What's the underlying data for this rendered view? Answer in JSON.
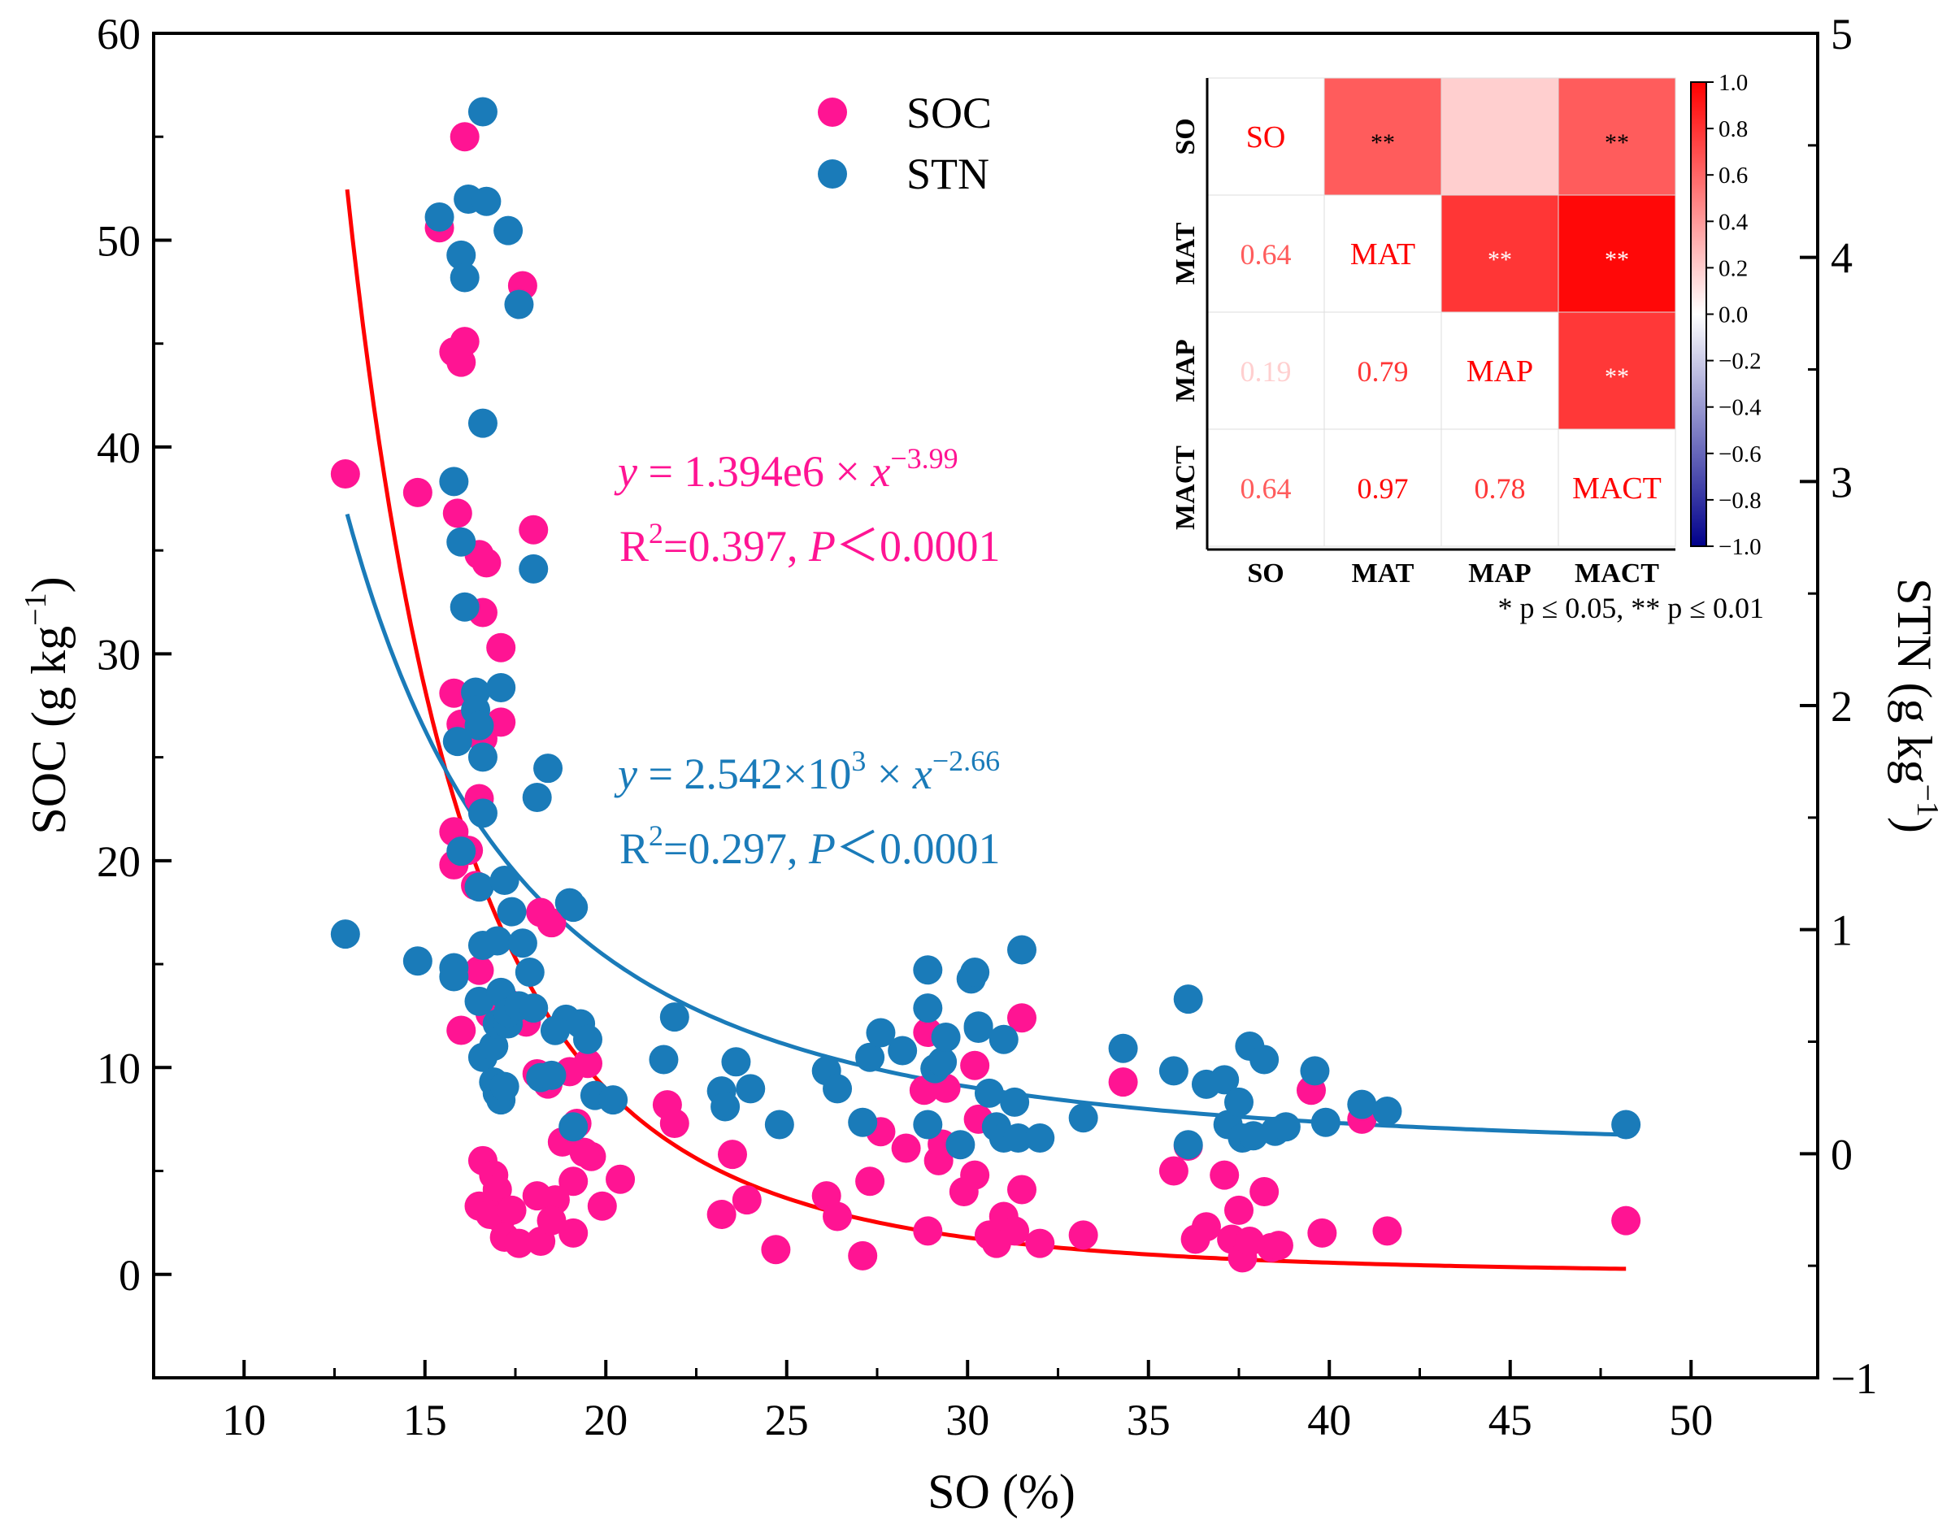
{
  "chart_data": {
    "type": "scatter",
    "xlabel": "SO (%)",
    "ylabel_left": "SOC (g kg",
    "ylabel_right": "STN (g kg",
    "unit_exponent": "−1",
    "xlim": [
      7.5,
      53.5
    ],
    "ylim_left": [
      -5,
      60
    ],
    "ylim_right": [
      -1,
      5
    ],
    "x_ticks": [
      10,
      15,
      20,
      25,
      30,
      35,
      40,
      45,
      50
    ],
    "y_left_ticks": [
      0,
      10,
      20,
      30,
      40,
      50,
      60
    ],
    "y_right_ticks": [
      -1,
      0,
      1,
      2,
      3,
      4,
      5
    ],
    "y_right_tick_labels": [
      "−1",
      "0",
      "1",
      "2",
      "3",
      "4",
      "5"
    ],
    "legend": [
      "SOC",
      "STN"
    ],
    "colors": {
      "SOC": "#ff1493",
      "STN": "#1a7bb9",
      "SOC_fit": "#ff0000",
      "STN_fit": "#1a7bb9",
      "axis": "#000000"
    },
    "series": [
      {
        "name": "SOC",
        "axis": "left",
        "points": [
          [
            12.8,
            38.7
          ],
          [
            14.8,
            37.8
          ],
          [
            15.4,
            50.6
          ],
          [
            15.8,
            44.6
          ],
          [
            16.0,
            44.1
          ],
          [
            16.1,
            45.1
          ],
          [
            16.1,
            55.0
          ],
          [
            15.9,
            36.8
          ],
          [
            16.5,
            34.8
          ],
          [
            16.7,
            34.4
          ],
          [
            16.6,
            32.0
          ],
          [
            17.1,
            30.3
          ],
          [
            17.7,
            47.8
          ],
          [
            18.0,
            36.0
          ],
          [
            15.8,
            28.1
          ],
          [
            16.0,
            26.6
          ],
          [
            16.3,
            26.3
          ],
          [
            16.6,
            25.9
          ],
          [
            17.1,
            26.7
          ],
          [
            16.5,
            23.0
          ],
          [
            15.8,
            21.4
          ],
          [
            16.2,
            20.5
          ],
          [
            15.8,
            19.8
          ],
          [
            16.4,
            18.8
          ],
          [
            18.2,
            17.5
          ],
          [
            18.5,
            17.0
          ],
          [
            16.5,
            14.7
          ],
          [
            16.8,
            12.6
          ],
          [
            16.0,
            11.8
          ],
          [
            17.3,
            13.1
          ],
          [
            17.8,
            12.2
          ],
          [
            18.1,
            9.7
          ],
          [
            18.4,
            9.2
          ],
          [
            18.8,
            6.4
          ],
          [
            19.2,
            7.3
          ],
          [
            19.5,
            10.2
          ],
          [
            19.0,
            9.8
          ],
          [
            19.6,
            5.7
          ],
          [
            19.1,
            4.5
          ],
          [
            19.4,
            5.9
          ],
          [
            19.9,
            3.3
          ],
          [
            20.4,
            4.6
          ],
          [
            19.1,
            2.0
          ],
          [
            18.6,
            3.6
          ],
          [
            18.1,
            3.8
          ],
          [
            16.6,
            5.5
          ],
          [
            16.9,
            4.8
          ],
          [
            17.0,
            4.1
          ],
          [
            16.5,
            3.3
          ],
          [
            16.8,
            2.9
          ],
          [
            17.1,
            2.7
          ],
          [
            17.2,
            1.8
          ],
          [
            17.6,
            1.5
          ],
          [
            17.4,
            3.1
          ],
          [
            18.2,
            1.6
          ],
          [
            18.5,
            2.6
          ],
          [
            21.7,
            8.2
          ],
          [
            21.9,
            7.3
          ],
          [
            23.2,
            2.9
          ],
          [
            23.5,
            5.8
          ],
          [
            23.9,
            3.6
          ],
          [
            24.7,
            1.2
          ],
          [
            26.1,
            3.8
          ],
          [
            26.4,
            2.8
          ],
          [
            27.1,
            0.9
          ],
          [
            27.3,
            4.5
          ],
          [
            27.6,
            6.9
          ],
          [
            28.3,
            6.1
          ],
          [
            28.9,
            11.7
          ],
          [
            28.8,
            8.9
          ],
          [
            29.2,
            5.5
          ],
          [
            29.3,
            6.3
          ],
          [
            29.4,
            9.0
          ],
          [
            28.9,
            2.1
          ],
          [
            29.9,
            4.0
          ],
          [
            30.2,
            4.8
          ],
          [
            30.2,
            10.1
          ],
          [
            30.3,
            7.5
          ],
          [
            30.6,
            1.9
          ],
          [
            30.8,
            1.5
          ],
          [
            31.0,
            2.8
          ],
          [
            31.3,
            2.1
          ],
          [
            31.5,
            4.1
          ],
          [
            31.5,
            12.4
          ],
          [
            32.0,
            1.5
          ],
          [
            33.2,
            1.9
          ],
          [
            34.3,
            9.3
          ],
          [
            35.7,
            5.0
          ],
          [
            36.1,
            6.2
          ],
          [
            36.3,
            1.7
          ],
          [
            36.6,
            2.3
          ],
          [
            37.1,
            4.8
          ],
          [
            37.3,
            1.7
          ],
          [
            37.5,
            3.1
          ],
          [
            37.6,
            0.8
          ],
          [
            37.8,
            1.6
          ],
          [
            38.2,
            4.0
          ],
          [
            38.4,
            1.3
          ],
          [
            38.6,
            1.4
          ],
          [
            39.5,
            8.9
          ],
          [
            39.8,
            2.0
          ],
          [
            40.9,
            7.5
          ],
          [
            41.6,
            2.1
          ],
          [
            48.2,
            2.6
          ]
        ]
      },
      {
        "name": "STN",
        "axis": "right",
        "points": [
          [
            12.8,
            0.98
          ],
          [
            14.8,
            0.86
          ],
          [
            15.4,
            4.18
          ],
          [
            15.8,
            0.83
          ],
          [
            15.8,
            0.79
          ],
          [
            16.0,
            4.01
          ],
          [
            16.1,
            3.91
          ],
          [
            16.2,
            4.26
          ],
          [
            16.6,
            4.65
          ],
          [
            16.7,
            4.25
          ],
          [
            17.3,
            4.12
          ],
          [
            17.6,
            3.79
          ],
          [
            16.6,
            3.26
          ],
          [
            15.8,
            3.0
          ],
          [
            16.0,
            2.73
          ],
          [
            16.1,
            2.44
          ],
          [
            15.9,
            1.84
          ],
          [
            16.4,
            2.06
          ],
          [
            16.4,
            1.98
          ],
          [
            16.5,
            1.91
          ],
          [
            16.6,
            1.77
          ],
          [
            16.6,
            1.52
          ],
          [
            17.1,
            2.08
          ],
          [
            18.0,
            2.61
          ],
          [
            18.1,
            1.59
          ],
          [
            18.4,
            1.72
          ],
          [
            16.0,
            1.35
          ],
          [
            16.5,
            1.19
          ],
          [
            16.6,
            0.93
          ],
          [
            17.0,
            0.95
          ],
          [
            17.2,
            1.22
          ],
          [
            17.4,
            1.08
          ],
          [
            17.7,
            0.94
          ],
          [
            17.9,
            0.81
          ],
          [
            16.5,
            0.68
          ],
          [
            16.6,
            0.43
          ],
          [
            16.9,
            0.48
          ],
          [
            17.0,
            0.58
          ],
          [
            17.1,
            0.72
          ],
          [
            17.3,
            0.58
          ],
          [
            17.3,
            0.63
          ],
          [
            17.6,
            0.66
          ],
          [
            18.0,
            0.65
          ],
          [
            16.9,
            0.32
          ],
          [
            17.0,
            0.27
          ],
          [
            17.1,
            0.24
          ],
          [
            17.2,
            0.3
          ],
          [
            18.2,
            0.34
          ],
          [
            18.5,
            0.35
          ],
          [
            18.9,
            0.6
          ],
          [
            19.0,
            1.12
          ],
          [
            19.1,
            1.1
          ],
          [
            19.3,
            0.58
          ],
          [
            19.5,
            0.51
          ],
          [
            19.7,
            0.26
          ],
          [
            20.2,
            0.24
          ],
          [
            19.1,
            0.12
          ],
          [
            18.6,
            0.55
          ],
          [
            21.6,
            0.42
          ],
          [
            21.9,
            0.61
          ],
          [
            23.2,
            0.28
          ],
          [
            23.3,
            0.21
          ],
          [
            23.6,
            0.41
          ],
          [
            24.0,
            0.29
          ],
          [
            24.8,
            0.13
          ],
          [
            26.1,
            0.37
          ],
          [
            26.4,
            0.29
          ],
          [
            27.1,
            0.14
          ],
          [
            27.3,
            0.43
          ],
          [
            27.6,
            0.54
          ],
          [
            28.2,
            0.46
          ],
          [
            28.9,
            0.82
          ],
          [
            28.9,
            0.65
          ],
          [
            28.9,
            0.13
          ],
          [
            29.1,
            0.38
          ],
          [
            29.3,
            0.41
          ],
          [
            29.4,
            0.52
          ],
          [
            29.8,
            0.04
          ],
          [
            30.1,
            0.78
          ],
          [
            30.2,
            0.81
          ],
          [
            30.3,
            0.56
          ],
          [
            30.3,
            0.57
          ],
          [
            30.6,
            0.27
          ],
          [
            30.8,
            0.12
          ],
          [
            31.0,
            0.51
          ],
          [
            31.0,
            0.07
          ],
          [
            31.3,
            0.23
          ],
          [
            31.4,
            0.07
          ],
          [
            31.5,
            0.91
          ],
          [
            32.0,
            0.07
          ],
          [
            33.2,
            0.16
          ],
          [
            34.3,
            0.47
          ],
          [
            35.7,
            0.37
          ],
          [
            36.1,
            0.69
          ],
          [
            36.1,
            0.04
          ],
          [
            36.6,
            0.31
          ],
          [
            37.1,
            0.33
          ],
          [
            37.2,
            0.13
          ],
          [
            37.5,
            0.23
          ],
          [
            37.6,
            0.07
          ],
          [
            37.8,
            0.48
          ],
          [
            37.9,
            0.08
          ],
          [
            38.2,
            0.42
          ],
          [
            38.5,
            0.1
          ],
          [
            38.8,
            0.12
          ],
          [
            39.6,
            0.37
          ],
          [
            39.9,
            0.14
          ],
          [
            40.9,
            0.22
          ],
          [
            41.6,
            0.19
          ],
          [
            48.2,
            0.13
          ]
        ]
      }
    ],
    "fits": [
      {
        "name": "SOC fit",
        "axis": "left",
        "a": 1394000,
        "b": -3.99,
        "x_range": [
          12.85,
          48.2
        ],
        "equation_y": "y",
        "equation_rest": " = 1.394e6 × ",
        "equation_x": "x",
        "equation_exp": "−3.99",
        "r2_prefix": "R",
        "r2_sup": "2",
        "r2_rest": "=0.397, ",
        "p_label": "P",
        "p_rest": "＜0.0001"
      },
      {
        "name": "STN fit",
        "axis": "right",
        "a": 2542,
        "b": -2.66,
        "x_range": [
          12.85,
          48.2
        ],
        "equation_y": "y",
        "equation_rest": " = 2.542×10",
        "equation_sup": "3",
        "equation_times": " × ",
        "equation_x": "x",
        "equation_exp": "−2.66",
        "r2_prefix": "R",
        "r2_sup": "2",
        "r2_rest": "=0.297, ",
        "p_label": "P",
        "p_rest": "＜0.0001"
      }
    ],
    "correlation_inset": {
      "type": "heatmap",
      "variables": [
        "SO",
        "MAT",
        "MAP",
        "MACT"
      ],
      "matrix": [
        [
          1,
          0.64,
          0.19,
          0.64
        ],
        [
          0.64,
          1,
          0.79,
          0.97
        ],
        [
          0.19,
          0.79,
          1,
          0.78
        ],
        [
          0.64,
          0.97,
          0.78,
          1
        ]
      ],
      "significance": [
        [
          "",
          "**",
          "",
          "**"
        ],
        [
          "",
          "",
          "**",
          "**"
        ],
        [
          "",
          "",
          "",
          "**"
        ],
        [
          "",
          "",
          "",
          ""
        ]
      ],
      "colorbar_range": [
        -1,
        1
      ],
      "colorbar_ticks": [
        "1.0",
        "0.8",
        "0.6",
        "0.4",
        "0.2",
        "0.0",
        "−0.2",
        "−0.4",
        "−0.6",
        "−0.8",
        "−1.0"
      ],
      "note": "* p ≤ 0.05, ** p ≤ 0.01"
    }
  }
}
